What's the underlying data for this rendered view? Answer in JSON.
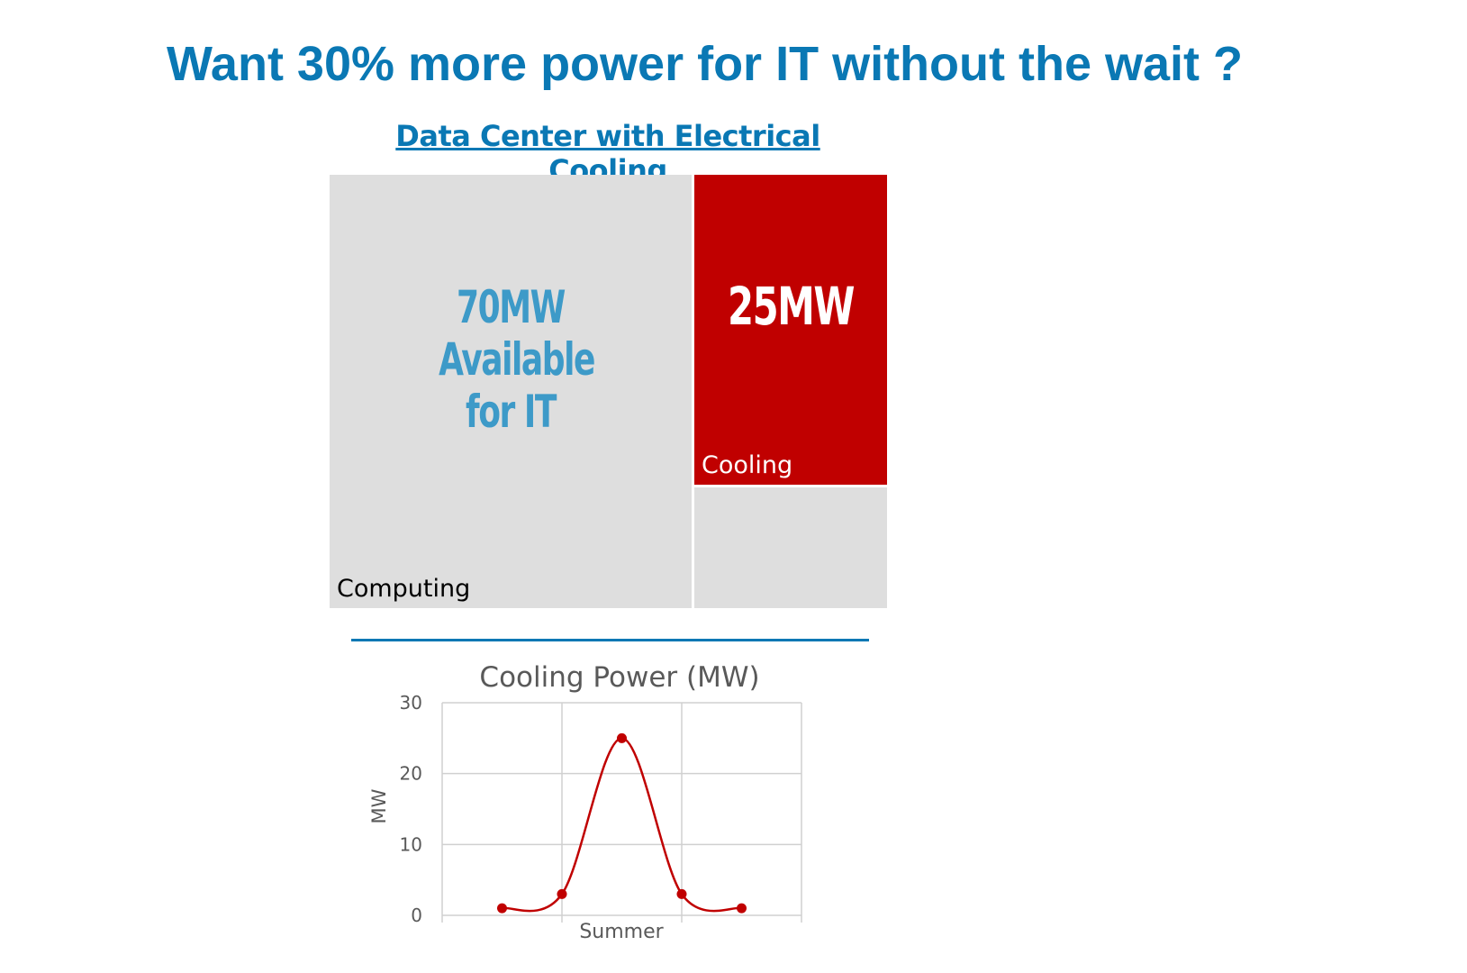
{
  "header": {
    "title": "Want 30% more power for IT without the wait ?",
    "subtitle": "Data Center with Electrical Cooling"
  },
  "treemap": {
    "computing": {
      "label": "Computing",
      "value_text": "70MW Available for IT",
      "color": "#dedede",
      "text_color": "#3d9ac8"
    },
    "cooling": {
      "label": "Cooling",
      "value_text": "25MW",
      "color": "#c00000"
    }
  },
  "colors": {
    "accent": "#0a78b4",
    "line": "#c00000"
  },
  "chart_data": {
    "type": "line",
    "title": "Cooling Power (MW)",
    "xlabel": "",
    "ylabel": "MW",
    "x_tick_label": "Summer",
    "values": [
      1,
      3,
      25,
      3,
      1
    ],
    "ylim": [
      0,
      30
    ],
    "yticks": [
      0,
      10,
      20,
      30
    ],
    "grid": true,
    "smooth": true
  }
}
